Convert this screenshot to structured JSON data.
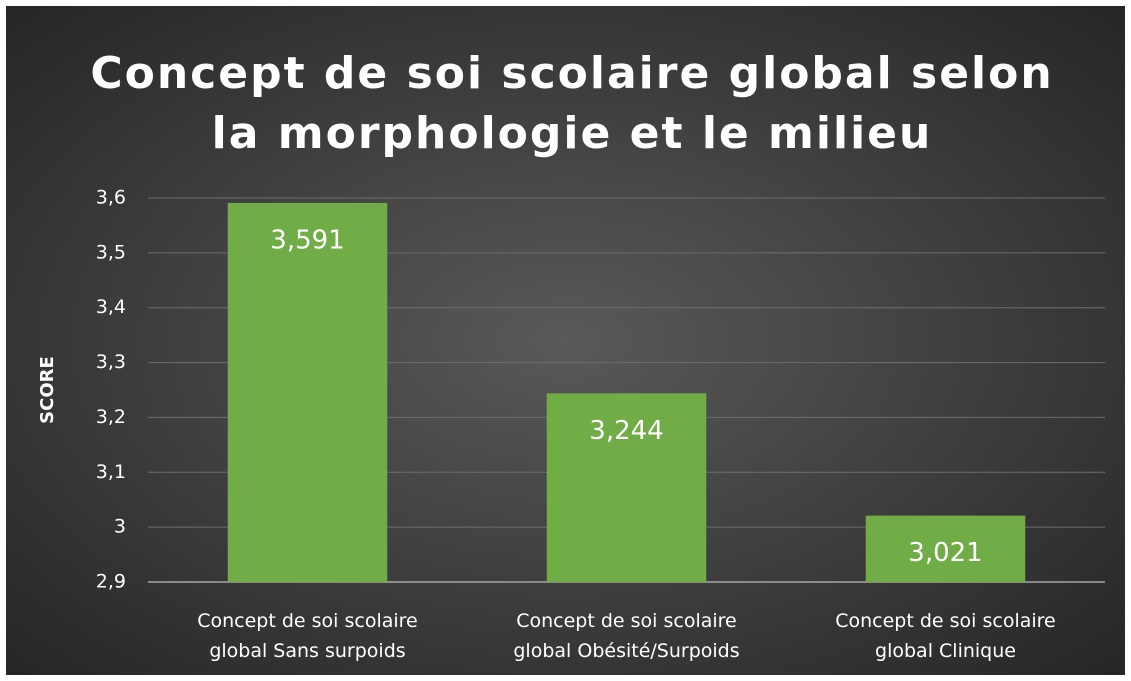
{
  "chart_data": {
    "type": "bar",
    "title": [
      "Concept de soi scolaire global selon",
      "la morphologie et le milieu"
    ],
    "y_label": "SCORE",
    "categories": [
      "Concept de soi scolaire global Sans surpoids",
      "Concept de soi scolaire global Obésité/Surpoids",
      "Concept de soi scolaire global Clinique"
    ],
    "values": [
      3.591,
      3.244,
      3.021
    ],
    "value_labels": [
      "3,591",
      "3,244",
      "3,021"
    ],
    "color": "#70ad47",
    "ylim": [
      2.9,
      3.6
    ],
    "yticks": [
      {
        "value": 2.9,
        "label": "2,9"
      },
      3,
      {
        "value": 3.1,
        "label": "3,1"
      },
      {
        "value": 3.2,
        "label": "3,2"
      },
      {
        "value": 3.3,
        "label": "3,3"
      },
      {
        "value": 3.4,
        "label": "3,4"
      },
      {
        "value": 3.5,
        "label": "3,5"
      },
      {
        "value": 3.6,
        "label": "3,6"
      }
    ],
    "grid": true
  }
}
